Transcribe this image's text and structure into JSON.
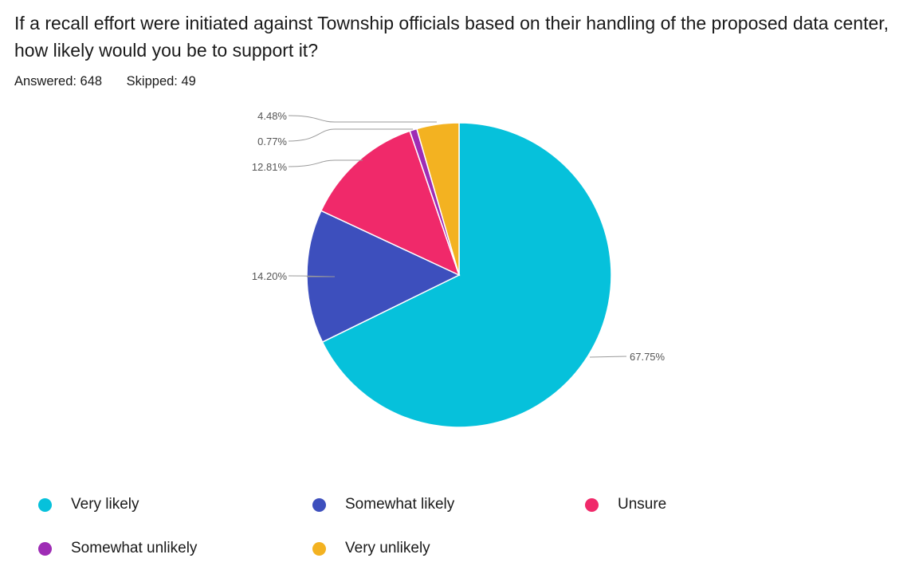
{
  "question": {
    "text": "If a recall effort were initiated against Township officials based on their handling of the proposed data center, how likely would you be to support it?"
  },
  "stats": {
    "answered": "Answered: 648",
    "skipped": "Skipped: 49"
  },
  "chart_data": {
    "type": "pie",
    "start_angle_deg": 0,
    "direction": "clockwise",
    "slices": [
      {
        "name": "Very likely",
        "value": 67.75,
        "label": "67.75%",
        "color": "#06c1db"
      },
      {
        "name": "Somewhat likely",
        "value": 14.2,
        "label": "14.20%",
        "color": "#3d4fbd"
      },
      {
        "name": "Unsure",
        "value": 12.81,
        "label": "12.81%",
        "color": "#f0296a"
      },
      {
        "name": "Somewhat unlikely",
        "value": 0.77,
        "label": "0.77%",
        "color": "#9e2cb5"
      },
      {
        "name": "Very unlikely",
        "value": 4.48,
        "label": "4.48%",
        "color": "#f3b221"
      }
    ],
    "legend_placement": "bottom"
  },
  "legend": {
    "items": [
      {
        "label": "Very likely",
        "color": "#06c1db"
      },
      {
        "label": "Somewhat likely",
        "color": "#3d4fbd"
      },
      {
        "label": "Unsure",
        "color": "#f0296a"
      },
      {
        "label": "Somewhat unlikely",
        "color": "#9e2cb5"
      },
      {
        "label": "Very unlikely",
        "color": "#f3b221"
      }
    ]
  }
}
